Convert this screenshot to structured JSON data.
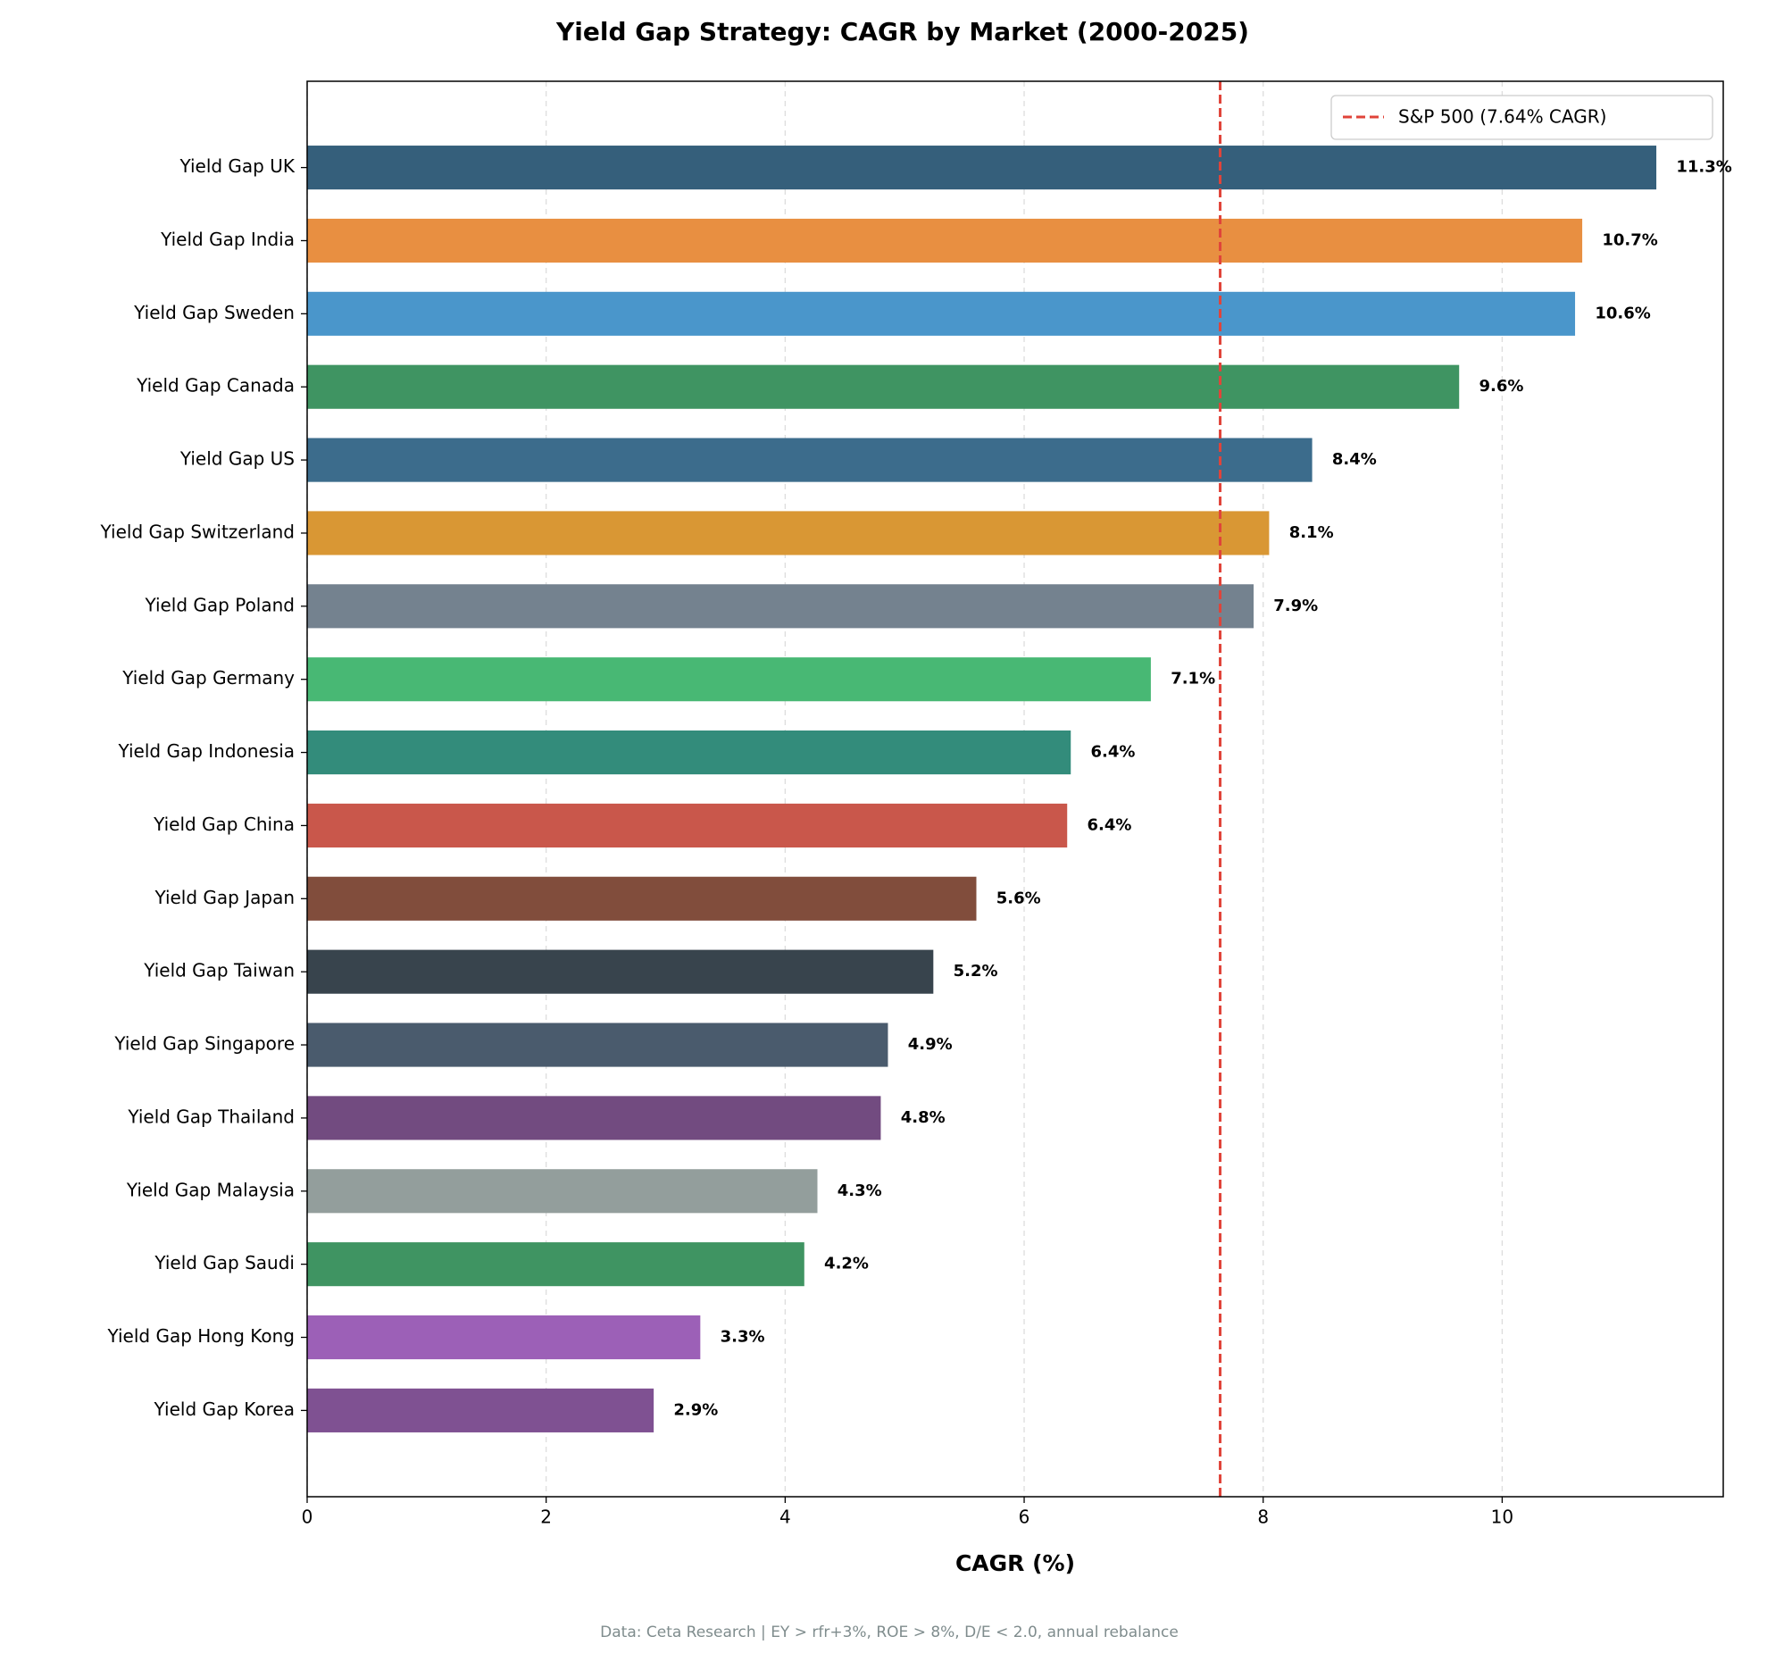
{
  "chart_data": {
    "type": "barh",
    "title": "Yield Gap Strategy: CAGR by Market (2000-2025)",
    "xlabel": "CAGR (%)",
    "footnote": "Data: Ceta Research | EY > rfr+3%, ROE > 8%, D/E < 2.0, annual rebalance",
    "categories": [
      "Yield Gap UK",
      "Yield Gap India",
      "Yield Gap Sweden",
      "Yield Gap Canada",
      "Yield Gap US",
      "Yield Gap Switzerland",
      "Yield Gap Poland",
      "Yield Gap Germany",
      "Yield Gap Indonesia",
      "Yield Gap China",
      "Yield Gap Japan",
      "Yield Gap Taiwan",
      "Yield Gap Singapore",
      "Yield Gap Thailand",
      "Yield Gap Malaysia",
      "Yield Gap Saudi",
      "Yield Gap Hong Kong",
      "Yield Gap Korea"
    ],
    "values": [
      11.29,
      10.67,
      10.61,
      9.64,
      8.41,
      8.05,
      7.92,
      7.06,
      6.39,
      6.36,
      5.6,
      5.24,
      4.86,
      4.8,
      4.27,
      4.16,
      3.29,
      2.9
    ],
    "value_labels": [
      "11.3%",
      "10.7%",
      "10.6%",
      "9.6%",
      "8.4%",
      "8.1%",
      "7.9%",
      "7.1%",
      "6.4%",
      "6.4%",
      "5.6%",
      "5.2%",
      "4.9%",
      "4.8%",
      "4.3%",
      "4.2%",
      "3.3%",
      "2.9%"
    ],
    "colors": [
      "#355f7b",
      "#e88f41",
      "#4a96cb",
      "#3f9462",
      "#3c6c8c",
      "#d99734",
      "#74828f",
      "#48b874",
      "#338c7b",
      "#c9574b",
      "#814d3c",
      "#38444d",
      "#4a5b6d",
      "#724b80",
      "#939e9c",
      "#3f9462",
      "#9c60b7",
      "#7f5192"
    ],
    "reference_line": {
      "value": 7.64,
      "label": "S&P 500 (7.64% CAGR)",
      "color": "#e0443a"
    },
    "xlim": [
      0,
      11.85
    ],
    "xticks": [
      0,
      2,
      4,
      6,
      8,
      10
    ],
    "grid": true,
    "legend_position": "upper right"
  }
}
